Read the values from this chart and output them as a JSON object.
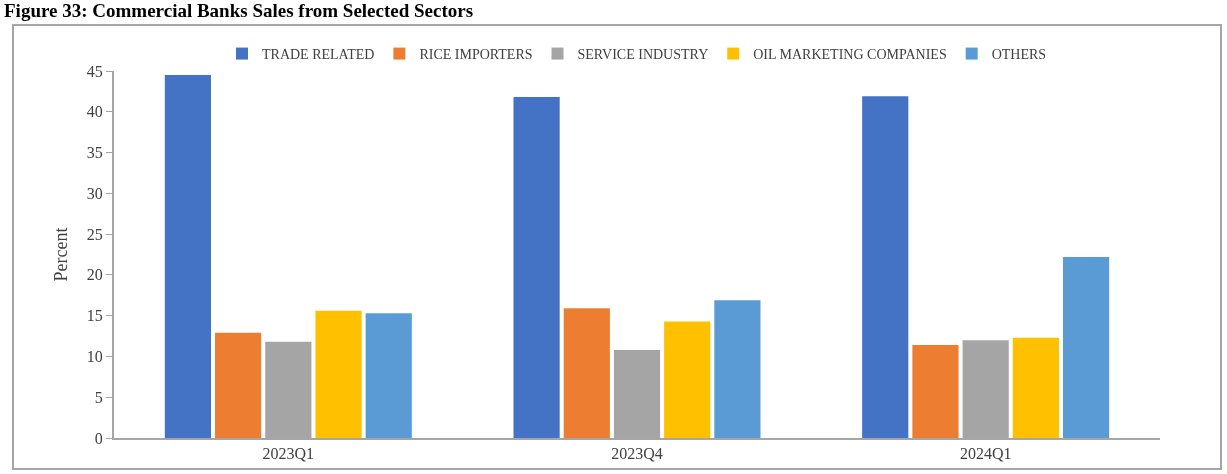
{
  "chart_data": {
    "type": "bar",
    "title": "Figure 33: Commercial Banks Sales from Selected Sectors",
    "ylabel": "Percent",
    "categories": [
      "2023Q1",
      "2023Q4",
      "2024Q1"
    ],
    "series": [
      {
        "name": "TRADE RELATED",
        "color": "#4472c4",
        "values": [
          44.5,
          41.8,
          41.9
        ]
      },
      {
        "name": "RICE IMPORTERS",
        "color": "#ed7d31",
        "values": [
          12.9,
          15.9,
          11.4
        ]
      },
      {
        "name": "SERVICE INDUSTRY",
        "color": "#a5a5a5",
        "values": [
          11.8,
          10.8,
          12.0
        ]
      },
      {
        "name": "OIL MARKETING COMPANIES",
        "color": "#ffc000",
        "values": [
          15.6,
          14.3,
          12.3
        ]
      },
      {
        "name": "OTHERS",
        "color": "#5b9bd5",
        "values": [
          15.3,
          16.9,
          22.2
        ]
      }
    ],
    "ylim": [
      0,
      45
    ],
    "yticks": [
      0,
      5,
      10,
      15,
      20,
      25,
      30,
      35,
      40,
      45
    ],
    "grid": false,
    "legend": "top"
  }
}
